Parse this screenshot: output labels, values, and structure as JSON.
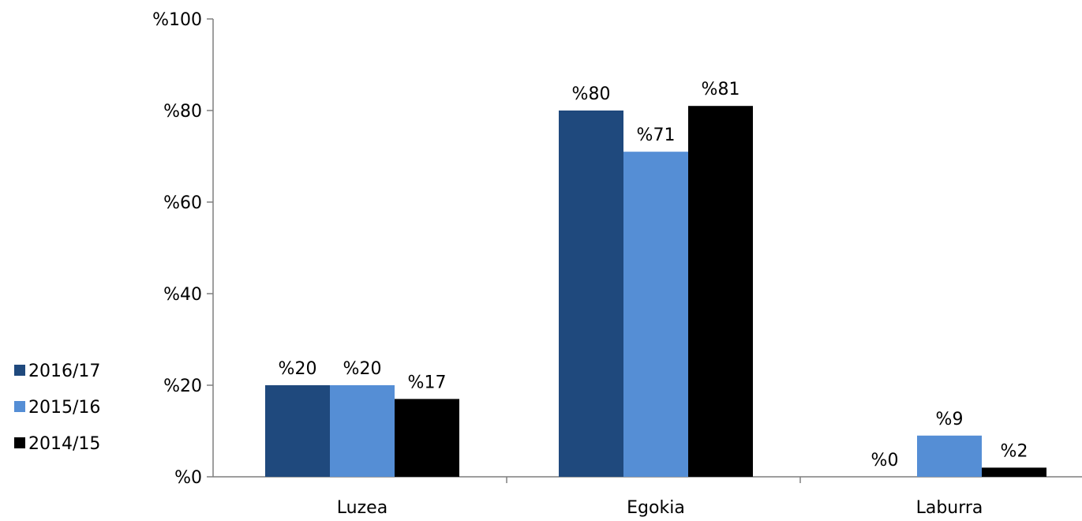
{
  "chart_data": {
    "type": "bar",
    "title": "",
    "xlabel": "",
    "ylabel": "",
    "categories": [
      "Luzea",
      "Egokia",
      "Laburra"
    ],
    "ylim": [
      0,
      100
    ],
    "yticks": [
      0,
      20,
      40,
      60,
      80,
      100
    ],
    "tick_prefix": "%",
    "grid": false,
    "legend_position": "left",
    "series": [
      {
        "name": "2016/17",
        "color": "#1f497d",
        "values": [
          20,
          80,
          0
        ],
        "labels": [
          "%20",
          "%80",
          "%0"
        ]
      },
      {
        "name": "2015/16",
        "color": "#558ed5",
        "values": [
          20,
          71,
          9
        ],
        "labels": [
          "%20",
          "%71",
          "%9"
        ]
      },
      {
        "name": "2014/15",
        "color": "#000000",
        "values": [
          17,
          81,
          2
        ],
        "labels": [
          "%17",
          "%81",
          "%2"
        ]
      }
    ]
  }
}
